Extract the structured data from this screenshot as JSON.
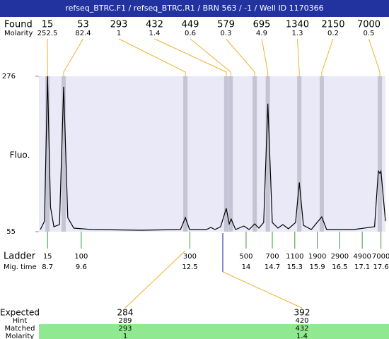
{
  "header": {
    "title": "refseq_BTRC.F1 / refseq_BTRC.R1 / BRN 563 / -1 / Well ID 1170366"
  },
  "found": {
    "label": "Found",
    "molarity_label": "Molarity",
    "peaks": [
      {
        "size": 15,
        "molarity": 252.5,
        "mig_time": 8.7
      },
      {
        "size": 53,
        "molarity": 82.4,
        "mig_time": 9.13
      },
      {
        "size": 293,
        "molarity": 1,
        "mig_time": 12.38
      },
      {
        "size": 432,
        "molarity": 1.4,
        "mig_time": 13.47
      },
      {
        "size": 449,
        "molarity": 0.6,
        "mig_time": 13.59
      },
      {
        "size": 579,
        "molarity": 0.3,
        "mig_time": 14.23
      },
      {
        "size": 695,
        "molarity": 4.9,
        "mig_time": 14.58
      },
      {
        "size": 1340,
        "molarity": 1.3,
        "mig_time": 15.42
      },
      {
        "size": 2150,
        "molarity": 0.2,
        "mig_time": 16.02
      },
      {
        "size": 7000,
        "molarity": 0.5,
        "mig_time": 17.57
      }
    ]
  },
  "chart_data": {
    "type": "line",
    "y_label": "Fluo.",
    "color": "#000000",
    "band_color": "#c4c4d4",
    "x": [
      8.51,
      8.62,
      8.7,
      8.78,
      8.87,
      9.02,
      9.13,
      9.24,
      9.4,
      9.89,
      11.21,
      12.25,
      12.38,
      12.49,
      12.94,
      13.06,
      13.17,
      13.32,
      13.47,
      13.55,
      13.6,
      13.72,
      13.94,
      14.08,
      14.23,
      14.34,
      14.47,
      14.58,
      14.7,
      14.85,
      14.98,
      15.13,
      15.32,
      15.42,
      15.53,
      15.74,
      16.02,
      16.15,
      16.87,
      17.43,
      17.53,
      17.57,
      17.6,
      17.72
    ],
    "values": [
      58,
      70,
      276,
      90,
      62,
      65,
      261,
      75,
      60,
      58,
      57,
      58,
      75,
      58,
      58,
      61,
      58,
      62,
      88,
      66,
      73,
      58,
      63,
      58,
      66,
      60,
      68,
      237,
      68,
      60,
      65,
      59,
      68,
      125,
      64,
      58,
      76,
      58,
      58,
      62,
      141,
      138,
      141,
      70
    ],
    "xlim": [
      8.47,
      17.72
    ],
    "ylim": [
      55,
      276
    ],
    "yticks": [
      55,
      276
    ]
  },
  "ladder": {
    "label": "Ladder",
    "mig_label": "Mig. time",
    "sizes": [
      15,
      100,
      300,
      500,
      700,
      1100,
      1900,
      2900,
      4900,
      7000
    ],
    "mig_times": [
      8.7,
      9.6,
      12.5,
      14,
      14.7,
      15.3,
      15.9,
      16.5,
      17.1,
      17.6
    ]
  },
  "expected": {
    "rows": [
      {
        "label": "Expected",
        "values": [
          284,
          392
        ]
      },
      {
        "label": "Hint",
        "values": [
          289,
          420
        ]
      },
      {
        "label": "Matched",
        "values": [
          293,
          432
        ]
      },
      {
        "label": "Molarity",
        "values": [
          1,
          1.4
        ]
      }
    ]
  }
}
